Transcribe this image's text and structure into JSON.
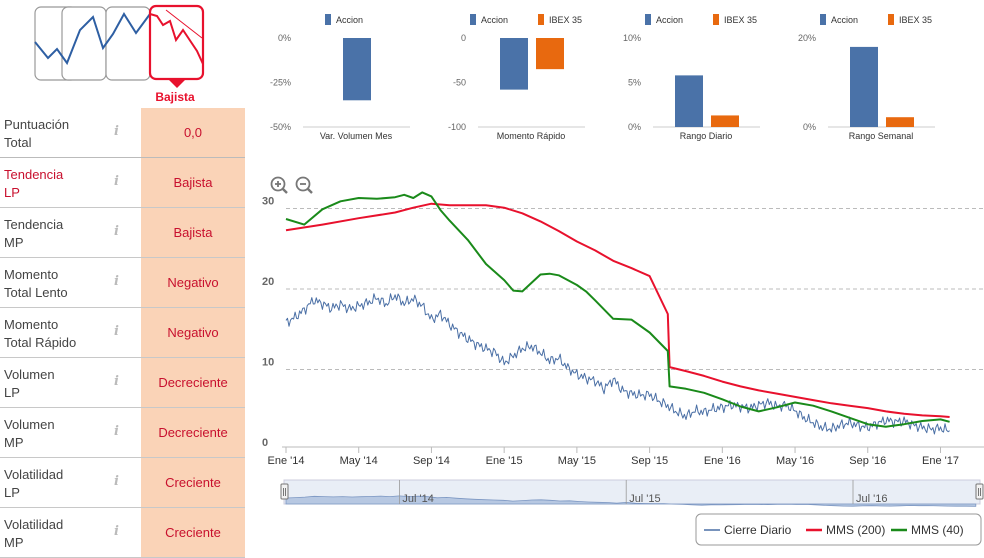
{
  "trend_selector": {
    "selected_label": "Bajista"
  },
  "indicators": [
    {
      "label_1": "Puntuación",
      "label_2": "Total",
      "value": "0,0",
      "highlight": false
    },
    {
      "label_1": "Tendencia",
      "label_2": "LP",
      "value": "Bajista",
      "highlight": true
    },
    {
      "label_1": "Tendencia",
      "label_2": "MP",
      "value": "Bajista",
      "highlight": false
    },
    {
      "label_1": "Momento",
      "label_2": "Total Lento",
      "value": "Negativo",
      "highlight": false
    },
    {
      "label_1": "Momento",
      "label_2": "Total Rápido",
      "value": "Negativo",
      "highlight": false
    },
    {
      "label_1": "Volumen",
      "label_2": "LP",
      "value": "Decreciente",
      "highlight": false
    },
    {
      "label_1": "Volumen",
      "label_2": "MP",
      "value": "Decreciente",
      "highlight": false
    },
    {
      "label_1": "Volatilidad",
      "label_2": "LP",
      "value": "Creciente",
      "highlight": false
    },
    {
      "label_1": "Volatilidad",
      "label_2": "MP",
      "value": "Creciente",
      "highlight": false
    }
  ],
  "info_glyph": "i",
  "colors": {
    "accion": "#4a72a8",
    "ibex": "#e8690f",
    "cierre": "#4a6fa5",
    "mms200": "#e8112d",
    "mms40": "#1a8a1a",
    "bajista_red": "#e8112d"
  },
  "chart_data": [
    {
      "type": "bar",
      "title": "Var. Volumen Mes",
      "legend": [
        "Accion"
      ],
      "categories": [
        "Var. Volumen Mes"
      ],
      "series": [
        {
          "name": "Accion",
          "values": [
            -35
          ]
        }
      ],
      "yticks": [
        "0%",
        "-25%",
        "-50%"
      ],
      "ylim": [
        -50,
        0
      ]
    },
    {
      "type": "bar",
      "title": "Momento Rápido",
      "legend": [
        "Accion",
        "IBEX 35"
      ],
      "categories": [
        "Momento Rápido"
      ],
      "series": [
        {
          "name": "Accion",
          "values": [
            -58
          ]
        },
        {
          "name": "IBEX 35",
          "values": [
            -35
          ]
        }
      ],
      "yticks": [
        "0",
        "-50",
        "-100"
      ],
      "ylim": [
        -100,
        0
      ]
    },
    {
      "type": "bar",
      "title": "Rango Diario",
      "legend": [
        "Accion",
        "IBEX 35"
      ],
      "categories": [
        "Rango Diario"
      ],
      "series": [
        {
          "name": "Accion",
          "values": [
            5.8
          ]
        },
        {
          "name": "IBEX 35",
          "values": [
            1.3
          ]
        }
      ],
      "yticks": [
        "10%",
        "5%",
        "0%"
      ],
      "ylim": [
        0,
        10
      ]
    },
    {
      "type": "bar",
      "title": "Rango Semanal",
      "legend": [
        "Accion",
        "IBEX 35"
      ],
      "categories": [
        "Rango Semanal"
      ],
      "series": [
        {
          "name": "Accion",
          "values": [
            18
          ]
        },
        {
          "name": "IBEX 35",
          "values": [
            2.2
          ]
        }
      ],
      "yticks": [
        "20%",
        "0%"
      ],
      "ylim": [
        0,
        20
      ]
    },
    {
      "type": "line",
      "title": "",
      "ylim": [
        0,
        32
      ],
      "yticks": [
        "30",
        "20",
        "10",
        "0"
      ],
      "x_labels": [
        "Ene '14",
        "May '14",
        "Sep '14",
        "Ene '15",
        "May '15",
        "Sep '15",
        "Ene '16",
        "May '16",
        "Sep '16",
        "Ene '17"
      ],
      "x_range_months": [
        0,
        37
      ],
      "navigator_labels": [
        "Jul '14",
        "Jul '15",
        "Jul '16"
      ],
      "legend": [
        "Cierre Diario",
        "MMS (200)",
        "MMS (40)"
      ],
      "series": [
        {
          "name": "Cierre Diario",
          "x": [
            0,
            0.5,
            1,
            1.5,
            2,
            2.5,
            3,
            3.5,
            4,
            4.5,
            5,
            5.5,
            6,
            6.5,
            7,
            7.5,
            8,
            8.5,
            9,
            9.5,
            10,
            10.5,
            11,
            11.5,
            12,
            12.5,
            13,
            13.5,
            14,
            14.5,
            15,
            15.5,
            16,
            16.5,
            17,
            17.5,
            18,
            18.5,
            19,
            19.5,
            20,
            20.5,
            21,
            21.5,
            22,
            22.5,
            23,
            23.5,
            24,
            24.5,
            25,
            25.5,
            26,
            26.5,
            27,
            27.5,
            28,
            28.5,
            29,
            29.5,
            30,
            30.5,
            31,
            31.5,
            32,
            32.5,
            33,
            33.5,
            34,
            34.5,
            35,
            35.5,
            36,
            36.5
          ],
          "values": [
            15.8,
            16.5,
            17.4,
            18.6,
            18.2,
            17.6,
            18.1,
            17.5,
            17.9,
            18.3,
            18.9,
            18.1,
            19.2,
            18.2,
            18.8,
            17.9,
            16.2,
            16.9,
            15.6,
            14.6,
            13.8,
            13.1,
            12.6,
            12.1,
            10.8,
            11.7,
            12.6,
            12.9,
            12.1,
            11.1,
            11.4,
            10.2,
            9.4,
            8.9,
            8.6,
            7.6,
            8.8,
            7.4,
            7.0,
            6.8,
            6.9,
            6.1,
            5.5,
            4.7,
            4.2,
            4.9,
            4.7,
            5.1,
            5.3,
            5.6,
            5.4,
            5.2,
            5.6,
            5.9,
            5.4,
            5.6,
            4.9,
            4.0,
            3.4,
            2.8,
            2.6,
            3.1,
            3.4,
            3.0,
            2.8,
            3.3,
            3.7,
            3.5,
            3.6,
            3.1,
            2.8,
            2.6,
            2.7,
            2.4
          ]
        },
        {
          "name": "MMS (200)",
          "x": [
            0,
            2,
            4,
            6,
            7,
            8,
            9,
            10,
            11,
            12,
            13,
            14,
            15,
            16,
            17,
            18,
            19,
            20,
            21,
            21.1,
            22,
            23,
            24,
            25,
            26,
            27,
            28,
            29,
            30,
            31,
            32,
            33,
            34,
            35,
            36,
            36.5
          ],
          "values": [
            27.3,
            28,
            28.8,
            29.5,
            30.1,
            30.6,
            30.4,
            30.4,
            30.4,
            30.1,
            29.4,
            28.4,
            27.2,
            25.9,
            24.8,
            23.5,
            22.6,
            21.6,
            16.9,
            10.3,
            9.8,
            9.2,
            8.5,
            7.9,
            7.4,
            7.0,
            6.6,
            6.2,
            5.8,
            5.5,
            5.2,
            4.8,
            4.5,
            4.3,
            4.2,
            4.1
          ]
        },
        {
          "name": "MMS (40)",
          "x": [
            0,
            1,
            2,
            3,
            4,
            5,
            6,
            6.5,
            7,
            7.5,
            8,
            8.5,
            9,
            10,
            11,
            12,
            12.5,
            13,
            14,
            14.5,
            15,
            16,
            16.5,
            17,
            18,
            19,
            20,
            21,
            21.1,
            22,
            23,
            24,
            25,
            26,
            27,
            28,
            29,
            30,
            31,
            32,
            33,
            34,
            35,
            36,
            36.5
          ],
          "values": [
            28.7,
            28,
            29.9,
            30.9,
            31.3,
            31.2,
            31.4,
            31.7,
            31.3,
            32,
            31.5,
            29.8,
            28.5,
            26.1,
            23.1,
            21.1,
            19.8,
            19.7,
            21.8,
            21.9,
            21.7,
            20.5,
            19.7,
            18.6,
            16.3,
            16.2,
            14.6,
            12.3,
            7.9,
            7.6,
            7.1,
            6.3,
            5.4,
            4.8,
            5.3,
            5.9,
            5.5,
            4.8,
            4.0,
            3.2,
            2.9,
            3.2,
            3.6,
            3.8,
            3.5
          ]
        }
      ]
    }
  ]
}
